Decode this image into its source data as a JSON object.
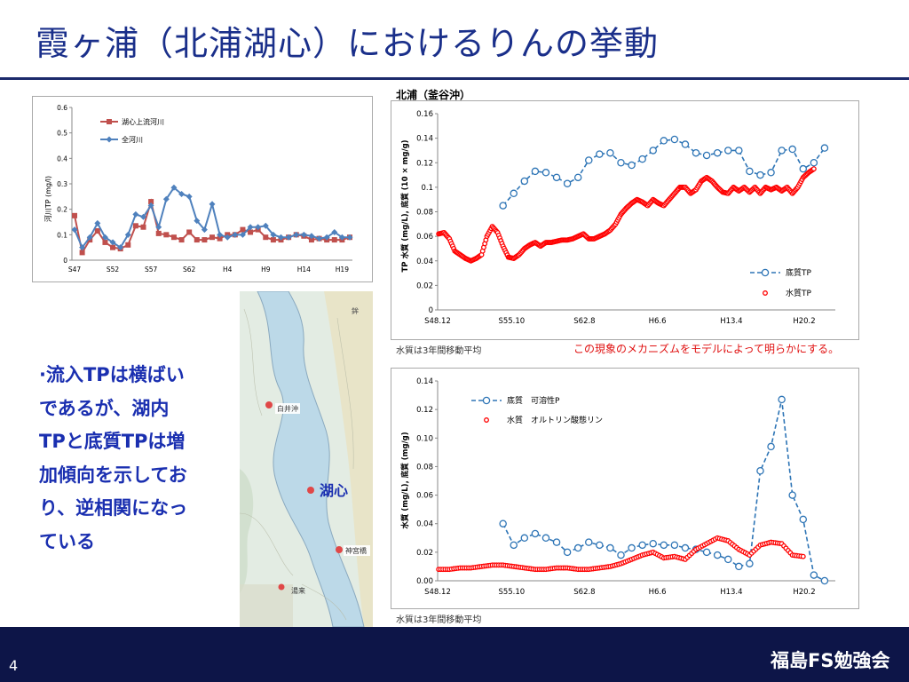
{
  "slide": {
    "title": "霞ヶ浦（北浦湖心）におけるりんの挙動",
    "bullet_lines": [
      "·流入TPは横ばい",
      "であるが、湖内",
      "TPと底質TPは増",
      "加傾向を示してお",
      "り、逆相関になっ",
      "ている"
    ],
    "page_number": "4",
    "footer_brand": "福島FS勉強会",
    "red_note": "この現象のメカニズムをモデルによって明らかにする。",
    "map_label": "湖心",
    "map_places": [
      "白井沖",
      "神宮橋",
      "湯来",
      "鉾"
    ]
  },
  "chart_data": [
    {
      "id": "inflow",
      "type": "line",
      "ylabel": "河川TP (mg/l)",
      "ylim": [
        0,
        0.6
      ],
      "yticks": [
        "0",
        "0.1",
        "0.2",
        "0.3",
        "0.4",
        "0.5",
        "0.6"
      ],
      "xticks": [
        "S47",
        "S52",
        "S57",
        "S62",
        "H4",
        "H9",
        "H14",
        "H19"
      ],
      "x": [
        1972,
        1973,
        1974,
        1975,
        1976,
        1977,
        1978,
        1979,
        1980,
        1981,
        1982,
        1983,
        1984,
        1985,
        1986,
        1987,
        1988,
        1989,
        1990,
        1991,
        1992,
        1993,
        1994,
        1995,
        1996,
        1997,
        1998,
        1999,
        2000,
        2001,
        2002,
        2003,
        2004,
        2005,
        2006,
        2007,
        2008
      ],
      "series": [
        {
          "name": "湖心上流河川",
          "color": "#c0504d",
          "marker": "square",
          "values": [
            0.175,
            0.03,
            0.08,
            0.115,
            0.07,
            0.05,
            0.045,
            0.06,
            0.135,
            0.13,
            0.23,
            0.105,
            0.1,
            0.09,
            0.08,
            0.11,
            0.08,
            0.08,
            0.09,
            0.085,
            0.1,
            0.1,
            0.12,
            0.11,
            0.12,
            0.09,
            0.08,
            0.08,
            0.09,
            0.1,
            0.095,
            0.08,
            0.085,
            0.08,
            0.08,
            0.08,
            0.09
          ]
        },
        {
          "name": "全河川",
          "color": "#4f81bd",
          "marker": "diamond",
          "values": [
            0.12,
            0.05,
            0.09,
            0.145,
            0.09,
            0.07,
            0.05,
            0.1,
            0.18,
            0.17,
            0.215,
            0.13,
            0.24,
            0.285,
            0.26,
            0.25,
            0.155,
            0.12,
            0.22,
            0.1,
            0.09,
            0.1,
            0.1,
            0.13,
            0.13,
            0.135,
            0.1,
            0.09,
            0.09,
            0.1,
            0.1,
            0.095,
            0.085,
            0.09,
            0.11,
            0.09,
            0.09
          ]
        }
      ]
    },
    {
      "id": "tp",
      "type": "line",
      "title": "北浦（釜谷沖）",
      "ylabel": "TP 水質 (mg/L), 底質 (10 × mg/g)",
      "ylim": [
        0,
        0.16
      ],
      "yticks": [
        "0",
        "0.02",
        "0.04",
        "0.06",
        "0.08",
        "0.1",
        "0.12",
        "0.14",
        "0.16"
      ],
      "xticks": [
        "S48.12",
        "S55.10",
        "S62.8",
        "H6.6",
        "H13.4",
        "H20.2"
      ],
      "xlim": [
        1973.9,
        2011.0
      ],
      "note": "水質は3年間移動平均",
      "series": [
        {
          "name": "底質TP",
          "color": "#2e75b6",
          "style": "dashed-circle",
          "x": [
            1980.0,
            1981.0,
            1982.0,
            1983.0,
            1984.0,
            1985.0,
            1986.0,
            1987.0,
            1988.0,
            1989.0,
            1990.0,
            1991.0,
            1992.0,
            1993.0,
            1994.0,
            1995.0,
            1996.0,
            1997.0,
            1998.0,
            1999.0,
            2000.0,
            2001.0,
            2002.0,
            2003.0,
            2004.0,
            2005.0,
            2006.0,
            2007.0,
            2008.0,
            2009.0,
            2010.0
          ],
          "values": [
            0.085,
            0.095,
            0.105,
            0.113,
            0.112,
            0.108,
            0.103,
            0.108,
            0.122,
            0.127,
            0.128,
            0.12,
            0.118,
            0.123,
            0.13,
            0.138,
            0.139,
            0.135,
            0.128,
            0.126,
            0.128,
            0.13,
            0.13,
            0.113,
            0.11,
            0.112,
            0.13,
            0.131,
            0.115,
            0.12,
            0.132
          ]
        },
        {
          "name": "水質TP",
          "color": "#ff0000",
          "style": "red-circles",
          "x": [
            1974.0,
            1974.5,
            1975.0,
            1975.5,
            1976.0,
            1976.5,
            1977.0,
            1977.5,
            1978.0,
            1978.5,
            1979.0,
            1979.5,
            1980.0,
            1980.5,
            1981.0,
            1981.5,
            1982.0,
            1982.5,
            1983.0,
            1983.5,
            1984.0,
            1984.5,
            1985.0,
            1985.5,
            1986.0,
            1986.5,
            1987.0,
            1987.5,
            1988.0,
            1988.5,
            1989.0,
            1989.5,
            1990.0,
            1990.5,
            1991.0,
            1991.5,
            1992.0,
            1992.5,
            1993.0,
            1993.5,
            1994.0,
            1994.5,
            1995.0,
            1995.5,
            1996.0,
            1996.5,
            1997.0,
            1997.5,
            1998.0,
            1998.5,
            1999.0,
            1999.5,
            2000.0,
            2000.5,
            2001.0,
            2001.5,
            2002.0,
            2002.5,
            2003.0,
            2003.5,
            2004.0,
            2004.5,
            2005.0,
            2005.5,
            2006.0,
            2006.5,
            2007.0,
            2007.5,
            2008.0,
            2008.5,
            2009.0
          ],
          "values": [
            0.062,
            0.063,
            0.058,
            0.048,
            0.045,
            0.042,
            0.04,
            0.042,
            0.045,
            0.06,
            0.068,
            0.063,
            0.052,
            0.043,
            0.042,
            0.045,
            0.05,
            0.053,
            0.055,
            0.052,
            0.055,
            0.055,
            0.056,
            0.057,
            0.057,
            0.058,
            0.06,
            0.062,
            0.058,
            0.058,
            0.06,
            0.062,
            0.065,
            0.07,
            0.078,
            0.083,
            0.087,
            0.09,
            0.088,
            0.085,
            0.09,
            0.087,
            0.085,
            0.09,
            0.095,
            0.1,
            0.1,
            0.095,
            0.098,
            0.105,
            0.108,
            0.105,
            0.1,
            0.096,
            0.095,
            0.1,
            0.097,
            0.1,
            0.096,
            0.1,
            0.095,
            0.1,
            0.098,
            0.1,
            0.097,
            0.1,
            0.095,
            0.1,
            0.108,
            0.112,
            0.115
          ]
        }
      ]
    },
    {
      "id": "dissolved",
      "type": "line",
      "ylabel": "水質 (mg/L), 底質 (mg/g)",
      "ylim": [
        0,
        0.14
      ],
      "yticks": [
        "0.00",
        "0.02",
        "0.04",
        "0.06",
        "0.08",
        "0.10",
        "0.12",
        "0.14"
      ],
      "xticks": [
        "S48.12",
        "S55.10",
        "S62.8",
        "H6.6",
        "H13.4",
        "H20.2"
      ],
      "xlim": [
        1973.9,
        2011.0
      ],
      "note": "水質は3年間移動平均",
      "series": [
        {
          "name": "底質　可溶性P",
          "color": "#2e75b6",
          "style": "dashed-circle",
          "x": [
            1980.0,
            1981.0,
            1982.0,
            1983.0,
            1984.0,
            1985.0,
            1986.0,
            1987.0,
            1988.0,
            1989.0,
            1990.0,
            1991.0,
            1992.0,
            1993.0,
            1994.0,
            1995.0,
            1996.0,
            1997.0,
            1998.0,
            1999.0,
            2000.0,
            2001.0,
            2002.0,
            2003.0,
            2004.0,
            2005.0,
            2006.0,
            2007.0,
            2008.0,
            2009.0,
            2010.0
          ],
          "values": [
            0.04,
            0.025,
            0.03,
            0.033,
            0.03,
            0.027,
            0.02,
            0.023,
            0.027,
            0.025,
            0.023,
            0.018,
            0.023,
            0.025,
            0.026,
            0.025,
            0.025,
            0.023,
            0.022,
            0.02,
            0.018,
            0.015,
            0.01,
            0.012,
            0.077,
            0.094,
            0.127,
            0.06,
            0.043,
            0.004,
            0.0
          ]
        },
        {
          "name": "水質　オルトリン酸態リン",
          "color": "#ff0000",
          "style": "red-circles",
          "x": [
            1974.0,
            1975.0,
            1976.0,
            1977.0,
            1978.0,
            1979.0,
            1980.0,
            1981.0,
            1982.0,
            1983.0,
            1984.0,
            1985.0,
            1986.0,
            1987.0,
            1988.0,
            1989.0,
            1990.0,
            1991.0,
            1992.0,
            1993.0,
            1994.0,
            1995.0,
            1996.0,
            1997.0,
            1998.0,
            1999.0,
            2000.0,
            2001.0,
            2002.0,
            2003.0,
            2004.0,
            2005.0,
            2006.0,
            2007.0,
            2008.0
          ],
          "values": [
            0.008,
            0.008,
            0.009,
            0.009,
            0.01,
            0.011,
            0.011,
            0.01,
            0.009,
            0.008,
            0.008,
            0.009,
            0.009,
            0.008,
            0.008,
            0.009,
            0.01,
            0.012,
            0.015,
            0.018,
            0.02,
            0.016,
            0.017,
            0.015,
            0.022,
            0.026,
            0.03,
            0.028,
            0.022,
            0.018,
            0.025,
            0.027,
            0.026,
            0.018,
            0.017
          ]
        }
      ]
    }
  ]
}
